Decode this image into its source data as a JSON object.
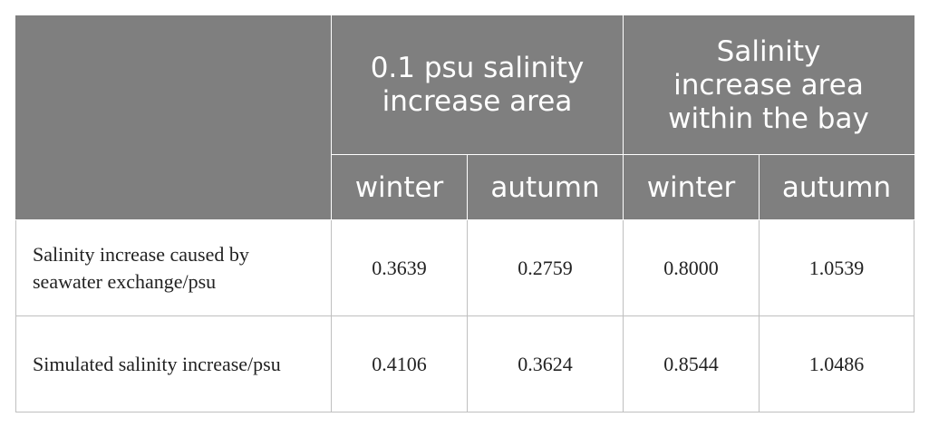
{
  "table": {
    "groups": [
      "0.1 psu salinity increase area",
      "Salinity increase area within the bay"
    ],
    "subheaders": [
      "winter",
      "autumn",
      "winter",
      "autumn"
    ],
    "rows": [
      {
        "label": "Salinity increase caused by seawater exchange/psu",
        "values": [
          "0.3639",
          "0.2759",
          "0.8000",
          "1.0539"
        ]
      },
      {
        "label": "Simulated salinity increase/psu",
        "values": [
          "0.4106",
          "0.3624",
          "0.8544",
          "1.0486"
        ]
      }
    ]
  }
}
